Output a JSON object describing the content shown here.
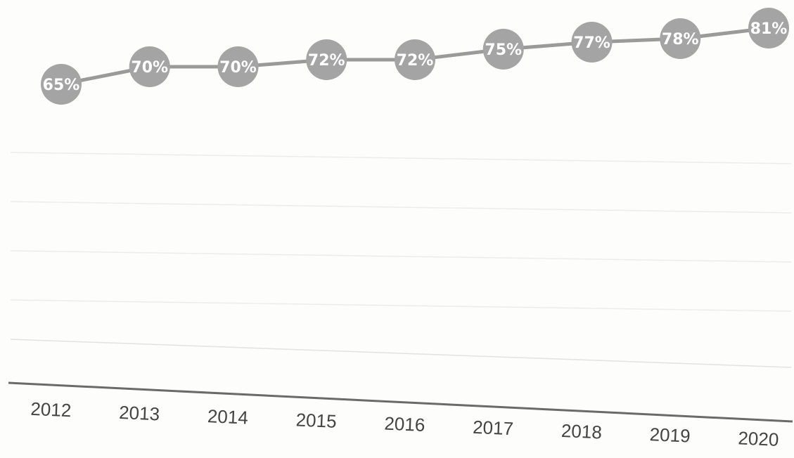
{
  "chart_data": {
    "type": "line",
    "categories": [
      "2012",
      "2013",
      "2014",
      "2015",
      "2016",
      "2017",
      "2018",
      "2019",
      "2020"
    ],
    "series": [
      {
        "values": [
          65,
          70,
          70,
          72,
          72,
          75,
          77,
          78,
          81
        ],
        "data_labels": [
          "65%",
          "70%",
          "70%",
          "72%",
          "72%",
          "75%",
          "77%",
          "78%",
          "81%"
        ]
      }
    ],
    "title": "",
    "xlabel": "",
    "ylabel": "",
    "grid": true,
    "legend": "none",
    "colors": {
      "line": "#9a9a9a",
      "marker": "#a4a4a4",
      "axis": "#6a6a6a"
    }
  }
}
